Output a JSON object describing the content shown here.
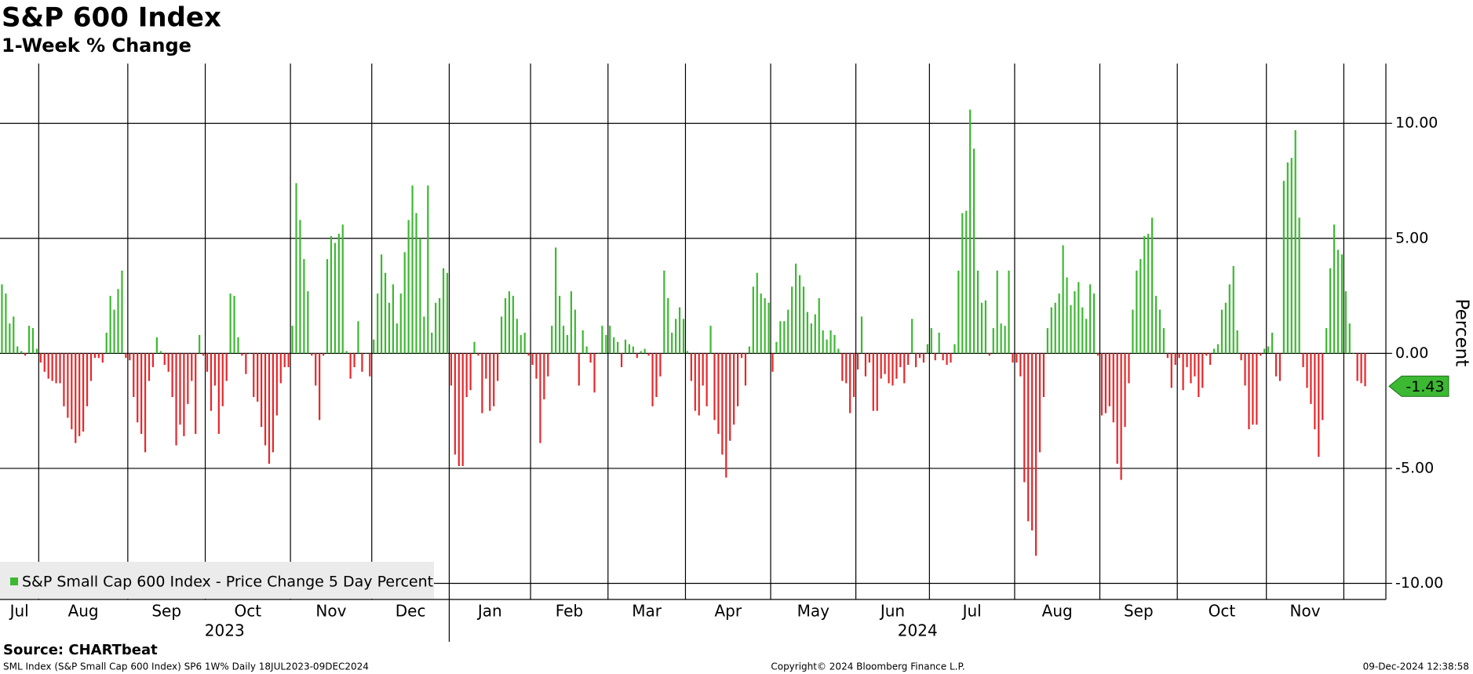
{
  "chart_data": {
    "type": "bar",
    "title": "S&P 600 Index",
    "subtitle": "1-Week % Change",
    "y_label": "Percent",
    "legend": "S&P Small Cap 600 Index - Price Change 5 Day Percent",
    "source": "Source: CHARTbeat",
    "footer_left": "SML Index (S&P Small Cap 600 Index) SP6 1W% Daily 18JUL2023-09DEC2024",
    "footer_center": "Copyright© 2024 Bloomberg Finance L.P.",
    "footer_right": "09-Dec-2024 12:38:58",
    "color_positive": "#3cb832",
    "color_negative": "#e8262a",
    "ylim": [
      -10.7,
      12.6
    ],
    "yticks": [
      {
        "value": 10,
        "label": "10.00"
      },
      {
        "value": 5,
        "label": "5.00"
      },
      {
        "value": 0,
        "label": "0.00"
      },
      {
        "value": -5,
        "label": "-5.00"
      },
      {
        "value": -10,
        "label": "-10.00"
      }
    ],
    "grid": true,
    "years": [
      {
        "label": "2023",
        "months": [
          {
            "label": "Jul",
            "values": [
              3.0,
              2.6,
              1.3,
              1.6,
              0.3,
              0.1,
              -0.1,
              1.2,
              1.1,
              0.2
            ]
          },
          {
            "label": "Aug",
            "values": [
              -0.4,
              -0.8,
              -1.1,
              -1.2,
              -1.3,
              -1.3,
              -2.3,
              -2.8,
              -3.3,
              -3.9,
              -3.6,
              -3.4,
              -2.3,
              -1.2,
              -0.2,
              -0.2,
              -0.4,
              0.9,
              2.5,
              1.9,
              2.8,
              3.6,
              -0.2
            ]
          },
          {
            "label": "Sep",
            "values": [
              -0.3,
              -1.9,
              -3.0,
              -3.5,
              -4.3,
              -1.2,
              -0.6,
              0.7,
              0.1,
              -0.5,
              -0.8,
              -1.9,
              -4.0,
              -3.1,
              -3.6,
              -2.2,
              -1.2,
              -3.5,
              0.8,
              -0.1
            ]
          },
          {
            "label": "Oct",
            "values": [
              -0.8,
              -2.5,
              -1.4,
              -3.5,
              -2.3,
              -1.2,
              2.6,
              2.5,
              0.7,
              -0.1,
              -0.9,
              0.0,
              -1.9,
              -2.1,
              -3.2,
              -4.0,
              -4.8,
              -4.3,
              -2.7,
              -1.3,
              -0.6,
              -0.6
            ]
          },
          {
            "label": "Nov",
            "values": [
              1.2,
              7.4,
              5.8,
              4.1,
              2.7,
              -0.1,
              -1.4,
              -2.9,
              -0.1,
              4.1,
              5.1,
              4.8,
              5.2,
              5.6,
              0.1,
              -1.1,
              -0.6,
              1.4,
              -0.8,
              0.0,
              -1.0
            ]
          },
          {
            "label": "Dec",
            "values": [
              0.6,
              2.6,
              4.3,
              3.5,
              2.2,
              3.0,
              1.3,
              2.6,
              4.4,
              5.8,
              7.3,
              6.1,
              5.0,
              1.6,
              7.3,
              0.9,
              2.2,
              2.4,
              3.7,
              3.5
            ]
          }
        ]
      },
      {
        "label": "2024",
        "months": [
          {
            "label": "Jan",
            "values": [
              -1.4,
              -4.4,
              -4.9,
              -4.9,
              -1.9,
              -1.6,
              0.5,
              -0.1,
              -2.6,
              -1.1,
              -2.5,
              -2.3,
              -1.2,
              1.6,
              2.4,
              2.7,
              2.5,
              1.5,
              0.8,
              0.9,
              -0.1
            ]
          },
          {
            "label": "Feb",
            "values": [
              -0.5,
              -1.1,
              -3.9,
              -2.0,
              -1.0,
              1.2,
              4.6,
              2.5,
              1.2,
              0.8,
              2.7,
              1.9,
              -1.4,
              1.0,
              0.3,
              -0.4,
              -1.7,
              0.0,
              1.2,
              0.8
            ]
          },
          {
            "label": "Mar",
            "values": [
              1.2,
              0.7,
              0.5,
              -0.6,
              0.6,
              0.4,
              0.3,
              -0.2,
              0.1,
              0.2,
              -0.1,
              -2.3,
              -1.9,
              -1.0,
              3.6,
              2.4,
              0.9,
              1.5,
              2.0,
              1.5
            ]
          },
          {
            "label": "Apr",
            "values": [
              0.1,
              -1.2,
              -2.5,
              -2.7,
              -1.4,
              -2.3,
              1.2,
              -2.9,
              -3.5,
              -4.4,
              -5.4,
              -3.8,
              -3.1,
              -2.3,
              -0.2,
              -1.4,
              0.3,
              2.9,
              3.5,
              2.6,
              2.4,
              2.2
            ]
          },
          {
            "label": "May",
            "values": [
              -0.8,
              0.5,
              1.4,
              1.4,
              1.9,
              2.9,
              3.9,
              3.4,
              2.9,
              1.8,
              1.3,
              1.7,
              2.4,
              1.0,
              0.6,
              1.0,
              0.8,
              0.2,
              -1.2,
              -1.3,
              -2.6,
              -1.9
            ]
          },
          {
            "label": "Jun",
            "values": [
              -0.7,
              1.6,
              -1.0,
              -0.4,
              -2.5,
              -2.5,
              -1.1,
              -0.9,
              -1.3,
              -1.4,
              -1.1,
              -0.6,
              -1.3,
              -0.5,
              1.5,
              -0.6,
              -0.2,
              -0.4,
              0.4
            ]
          },
          {
            "label": "Jul",
            "values": [
              1.1,
              -0.3,
              0.9,
              -0.3,
              -0.5,
              -0.4,
              0.4,
              3.6,
              6.1,
              6.2,
              10.6,
              8.9,
              3.6,
              2.2,
              2.3,
              -0.1,
              1.1,
              3.6,
              1.3,
              1.2,
              3.6,
              -0.4
            ]
          },
          {
            "label": "Aug",
            "values": [
              -0.4,
              -1.0,
              -5.6,
              -7.3,
              -7.7,
              -8.8,
              -4.3,
              -1.9,
              1.1,
              2.0,
              2.2,
              2.6,
              4.7,
              3.3,
              2.1,
              2.7,
              3.1,
              2.0,
              1.5,
              3.0,
              2.6,
              -0.1
            ]
          },
          {
            "label": "Sep",
            "values": [
              -2.7,
              -2.6,
              -2.3,
              -3.0,
              -4.8,
              -5.5,
              -3.2,
              -1.3,
              1.9,
              3.6,
              4.1,
              5.1,
              5.2,
              5.9,
              2.5,
              1.9,
              1.1,
              -0.2,
              -1.5,
              -0.5
            ]
          },
          {
            "label": "Oct",
            "values": [
              -0.2,
              -1.6,
              -0.6,
              -1.3,
              -1.0,
              -1.9,
              -1.5,
              -0.1,
              -0.5,
              0.2,
              0.4,
              1.9,
              2.2,
              3.0,
              3.8,
              1.0,
              -0.3,
              -1.4,
              -3.3,
              -3.1,
              -3.1,
              -0.1,
              0.2
            ]
          },
          {
            "label": "Nov",
            "values": [
              0.3,
              0.9,
              -1.0,
              -1.2,
              7.5,
              8.3,
              8.5,
              9.7,
              5.9,
              -0.6,
              -1.5,
              -2.2,
              -3.3,
              -4.5,
              -2.9,
              1.1,
              3.7,
              5.6,
              4.5,
              4.3
            ]
          },
          {
            "label": null,
            "values": [
              2.7,
              1.3,
              0.0,
              -1.2,
              -1.3,
              -1.43
            ]
          }
        ]
      }
    ]
  }
}
